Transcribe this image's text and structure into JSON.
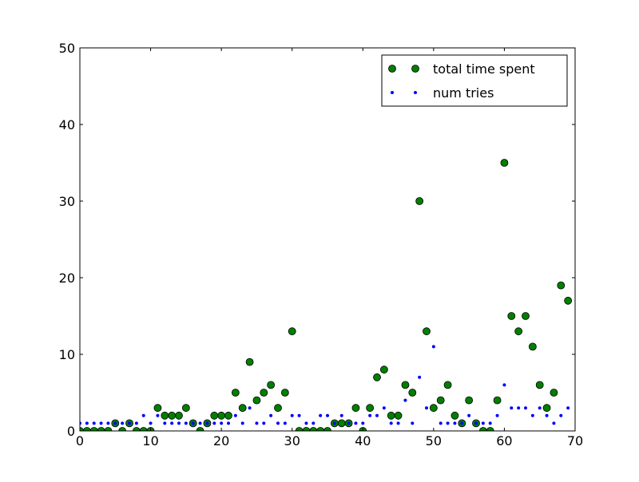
{
  "chart_data": {
    "type": "scatter",
    "title": "",
    "xlabel": "",
    "ylabel": "",
    "xlim": [
      0,
      70
    ],
    "ylim": [
      0,
      50
    ],
    "xticks": [
      0,
      10,
      20,
      30,
      40,
      50,
      60,
      70
    ],
    "yticks": [
      0,
      10,
      20,
      30,
      40,
      50
    ],
    "grid": false,
    "legend_position": "top-right",
    "series": [
      {
        "name": "total time spent",
        "color": "#007f00",
        "marker": "large-circle",
        "x": [
          0,
          1,
          2,
          3,
          4,
          5,
          6,
          7,
          8,
          9,
          10,
          11,
          12,
          13,
          14,
          15,
          16,
          17,
          18,
          19,
          20,
          21,
          22,
          23,
          24,
          25,
          26,
          27,
          28,
          29,
          30,
          31,
          32,
          33,
          34,
          35,
          36,
          37,
          38,
          39,
          40,
          41,
          42,
          43,
          44,
          45,
          46,
          47,
          48,
          49,
          50,
          51,
          52,
          53,
          54,
          55,
          56,
          57,
          58,
          59,
          60,
          61,
          62,
          63,
          64,
          65,
          66,
          67,
          68,
          69
        ],
        "values": [
          0,
          0,
          0,
          0,
          0,
          1,
          0,
          1,
          0,
          0,
          0,
          3,
          2,
          2,
          2,
          3,
          1,
          0,
          1,
          2,
          2,
          2,
          5,
          3,
          9,
          4,
          5,
          6,
          3,
          5,
          13,
          0,
          0,
          0,
          0,
          0,
          1,
          1,
          1,
          3,
          0,
          3,
          7,
          8,
          2,
          2,
          6,
          5,
          30,
          13,
          3,
          4,
          6,
          2,
          1,
          4,
          1,
          0,
          0,
          4,
          35,
          15,
          13,
          15,
          11,
          6,
          3,
          5,
          19,
          17
        ]
      },
      {
        "name": "num tries",
        "color": "#0000ff",
        "marker": "small-dot",
        "x": [
          0,
          1,
          2,
          3,
          4,
          5,
          6,
          7,
          8,
          9,
          10,
          11,
          12,
          13,
          14,
          15,
          16,
          17,
          18,
          19,
          20,
          21,
          22,
          23,
          24,
          25,
          26,
          27,
          28,
          29,
          30,
          31,
          32,
          33,
          34,
          35,
          36,
          37,
          38,
          39,
          40,
          41,
          42,
          43,
          44,
          45,
          46,
          47,
          48,
          49,
          50,
          51,
          52,
          53,
          54,
          55,
          56,
          57,
          58,
          59,
          60,
          61,
          62,
          63,
          64,
          65,
          66,
          67,
          68,
          69
        ],
        "values": [
          1,
          1,
          1,
          1,
          1,
          1,
          1,
          1,
          1,
          2,
          1,
          2,
          1,
          1,
          1,
          1,
          1,
          1,
          1,
          1,
          1,
          1,
          2,
          1,
          3,
          1,
          1,
          2,
          1,
          1,
          2,
          2,
          1,
          1,
          2,
          2,
          1,
          2,
          1,
          1,
          1,
          2,
          2,
          3,
          1,
          1,
          4,
          1,
          7,
          3,
          11,
          1,
          1,
          1,
          1,
          2,
          1,
          1,
          1,
          2,
          6,
          3,
          3,
          3,
          2,
          3,
          2,
          1,
          2,
          3
        ]
      }
    ]
  }
}
